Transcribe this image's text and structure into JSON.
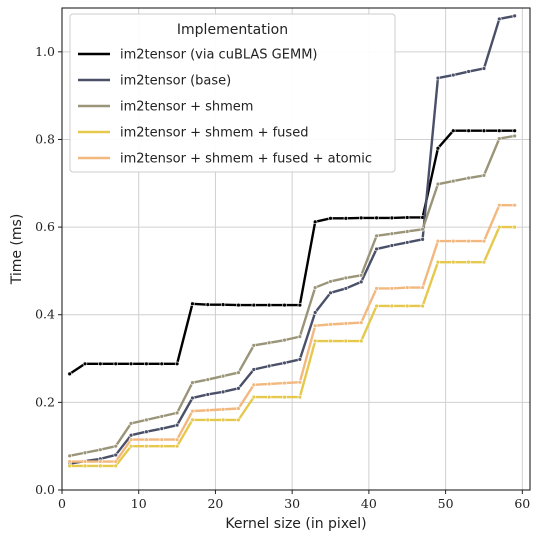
{
  "chart_data": {
    "type": "line",
    "xlabel": "Kernel size (in pixel)",
    "ylabel": "Time (ms)",
    "xlim": [
      0,
      61
    ],
    "ylim": [
      0,
      1.1
    ],
    "xticks": [
      0,
      10,
      20,
      30,
      40,
      50,
      60
    ],
    "yticks": [
      0.0,
      0.2,
      0.4,
      0.6,
      0.8,
      1.0
    ],
    "xtick_labels": [
      "0",
      "10",
      "20",
      "30",
      "40",
      "50",
      "60"
    ],
    "ytick_labels": [
      "0.0",
      "0.2",
      "0.4",
      "0.6",
      "0.8",
      "1.0"
    ],
    "grid": true,
    "legend_title": "Implementation",
    "legend_position": "top-left",
    "x": [
      1,
      3,
      5,
      7,
      9,
      11,
      13,
      15,
      17,
      19,
      21,
      23,
      25,
      27,
      29,
      31,
      33,
      35,
      37,
      39,
      41,
      43,
      45,
      47,
      49,
      51,
      53,
      55,
      57,
      59
    ],
    "series": [
      {
        "name": "im2tensor (via cuBLAS GEMM)",
        "color": "#000000",
        "values": [
          0.265,
          0.288,
          0.288,
          0.288,
          0.288,
          0.288,
          0.288,
          0.288,
          0.425,
          0.423,
          0.423,
          0.422,
          0.422,
          0.422,
          0.422,
          0.422,
          0.612,
          0.62,
          0.62,
          0.621,
          0.621,
          0.621,
          0.622,
          0.622,
          0.78,
          0.82,
          0.82,
          0.82,
          0.82,
          0.82
        ]
      },
      {
        "name": "im2tensor (base)",
        "color": "#4a5068",
        "values": [
          0.06,
          0.066,
          0.071,
          0.08,
          0.125,
          0.133,
          0.14,
          0.148,
          0.21,
          0.218,
          0.224,
          0.232,
          0.275,
          0.283,
          0.29,
          0.298,
          0.405,
          0.45,
          0.46,
          0.475,
          0.55,
          0.558,
          0.565,
          0.572,
          0.94,
          0.947,
          0.955,
          0.962,
          1.075,
          1.082
        ]
      },
      {
        "name": "im2tensor + shmem",
        "color": "#9a9478",
        "values": [
          0.078,
          0.085,
          0.092,
          0.1,
          0.152,
          0.16,
          0.168,
          0.176,
          0.245,
          0.252,
          0.26,
          0.268,
          0.33,
          0.336,
          0.342,
          0.35,
          0.462,
          0.476,
          0.484,
          0.49,
          0.58,
          0.585,
          0.59,
          0.595,
          0.698,
          0.705,
          0.712,
          0.718,
          0.802,
          0.808
        ]
      },
      {
        "name": "im2tensor + shmem + fused",
        "color": "#e5c84c",
        "values": [
          0.055,
          0.055,
          0.055,
          0.055,
          0.1,
          0.1,
          0.1,
          0.1,
          0.16,
          0.16,
          0.16,
          0.16,
          0.212,
          0.212,
          0.212,
          0.212,
          0.34,
          0.34,
          0.34,
          0.34,
          0.42,
          0.42,
          0.42,
          0.42,
          0.52,
          0.52,
          0.52,
          0.52,
          0.6,
          0.6
        ]
      },
      {
        "name": "im2tensor + shmem + fused + atomic",
        "color": "#f2b87e",
        "values": [
          0.065,
          0.065,
          0.065,
          0.065,
          0.115,
          0.115,
          0.115,
          0.115,
          0.18,
          0.182,
          0.184,
          0.186,
          0.24,
          0.242,
          0.244,
          0.246,
          0.375,
          0.378,
          0.38,
          0.382,
          0.46,
          0.46,
          0.462,
          0.462,
          0.568,
          0.568,
          0.568,
          0.568,
          0.65,
          0.65
        ]
      }
    ]
  }
}
